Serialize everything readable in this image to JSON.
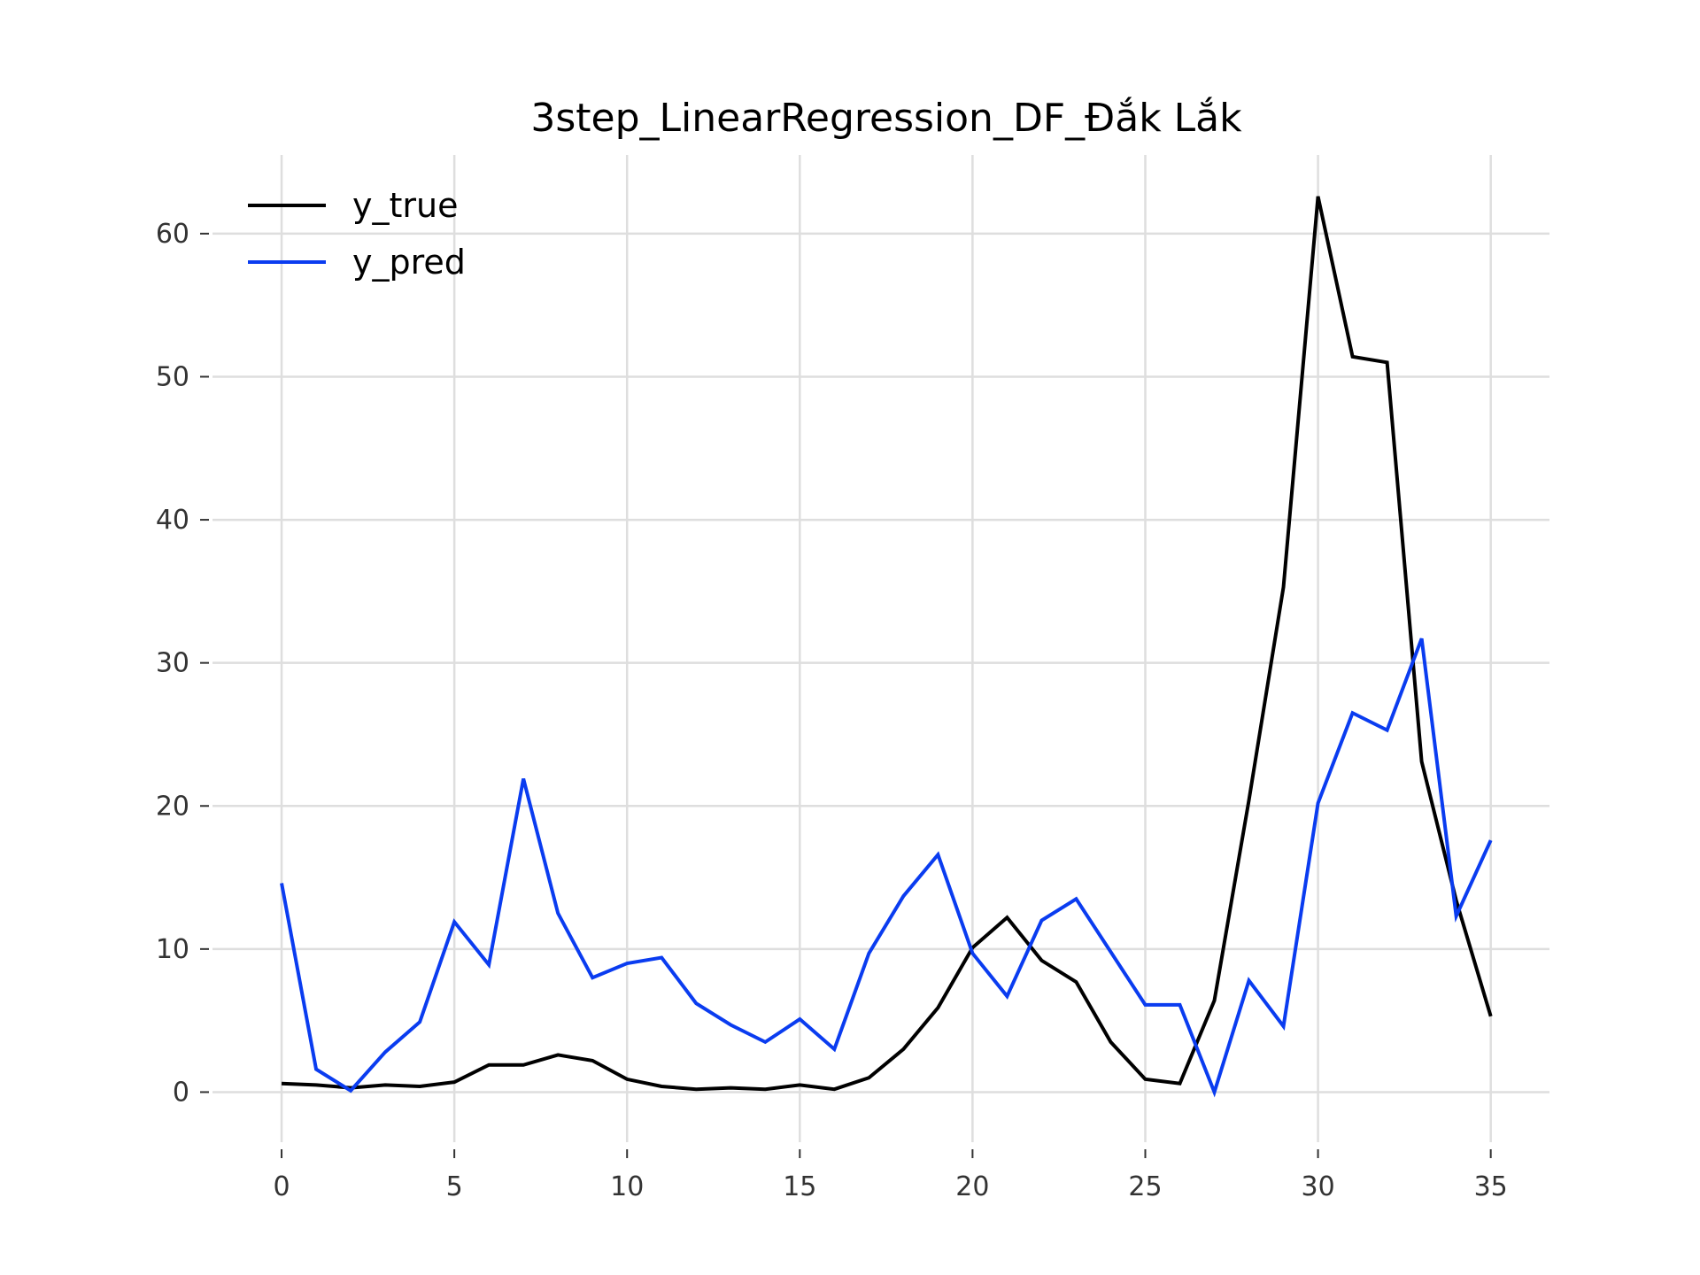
{
  "chart_data": {
    "type": "line",
    "title": "3step_LinearRegression_DF_Đắk Lắk",
    "xlabel": "",
    "ylabel": "",
    "xlim": [
      -2,
      36.7
    ],
    "ylim": [
      -3.5,
      65.5
    ],
    "x_ticks": [
      0,
      5,
      10,
      15,
      20,
      25,
      30,
      35
    ],
    "y_ticks": [
      0,
      10,
      20,
      30,
      40,
      50,
      60
    ],
    "grid": true,
    "legend_position": "top-left",
    "x": [
      0,
      1,
      2,
      3,
      4,
      5,
      6,
      7,
      8,
      9,
      10,
      11,
      12,
      13,
      14,
      15,
      16,
      17,
      18,
      19,
      20,
      21,
      22,
      23,
      24,
      25,
      26,
      27,
      28,
      29,
      30,
      31,
      32,
      33,
      34,
      35
    ],
    "series": [
      {
        "name": "y_true",
        "color": "#000000",
        "values": [
          0.6,
          0.5,
          0.3,
          0.5,
          0.4,
          0.7,
          1.9,
          1.9,
          2.6,
          2.2,
          0.9,
          0.4,
          0.2,
          0.3,
          0.2,
          0.5,
          0.2,
          1.0,
          3.0,
          5.9,
          10.1,
          12.2,
          9.2,
          7.7,
          3.5,
          0.9,
          0.6,
          6.4,
          20.4,
          35.3,
          62.6,
          51.4,
          51.0,
          23.1,
          13.4,
          5.3
        ]
      },
      {
        "name": "y_pred",
        "color": "#0a3cf0",
        "values": [
          14.6,
          1.6,
          0.1,
          2.8,
          4.9,
          11.9,
          8.9,
          21.9,
          12.5,
          8.0,
          9.0,
          9.4,
          6.2,
          4.7,
          3.5,
          5.1,
          3.0,
          9.7,
          13.7,
          16.6,
          9.7,
          6.7,
          12.0,
          13.5,
          9.8,
          6.1,
          6.1,
          0.0,
          7.8,
          4.6,
          20.2,
          26.5,
          25.3,
          31.7,
          12.3,
          17.6
        ]
      }
    ]
  }
}
